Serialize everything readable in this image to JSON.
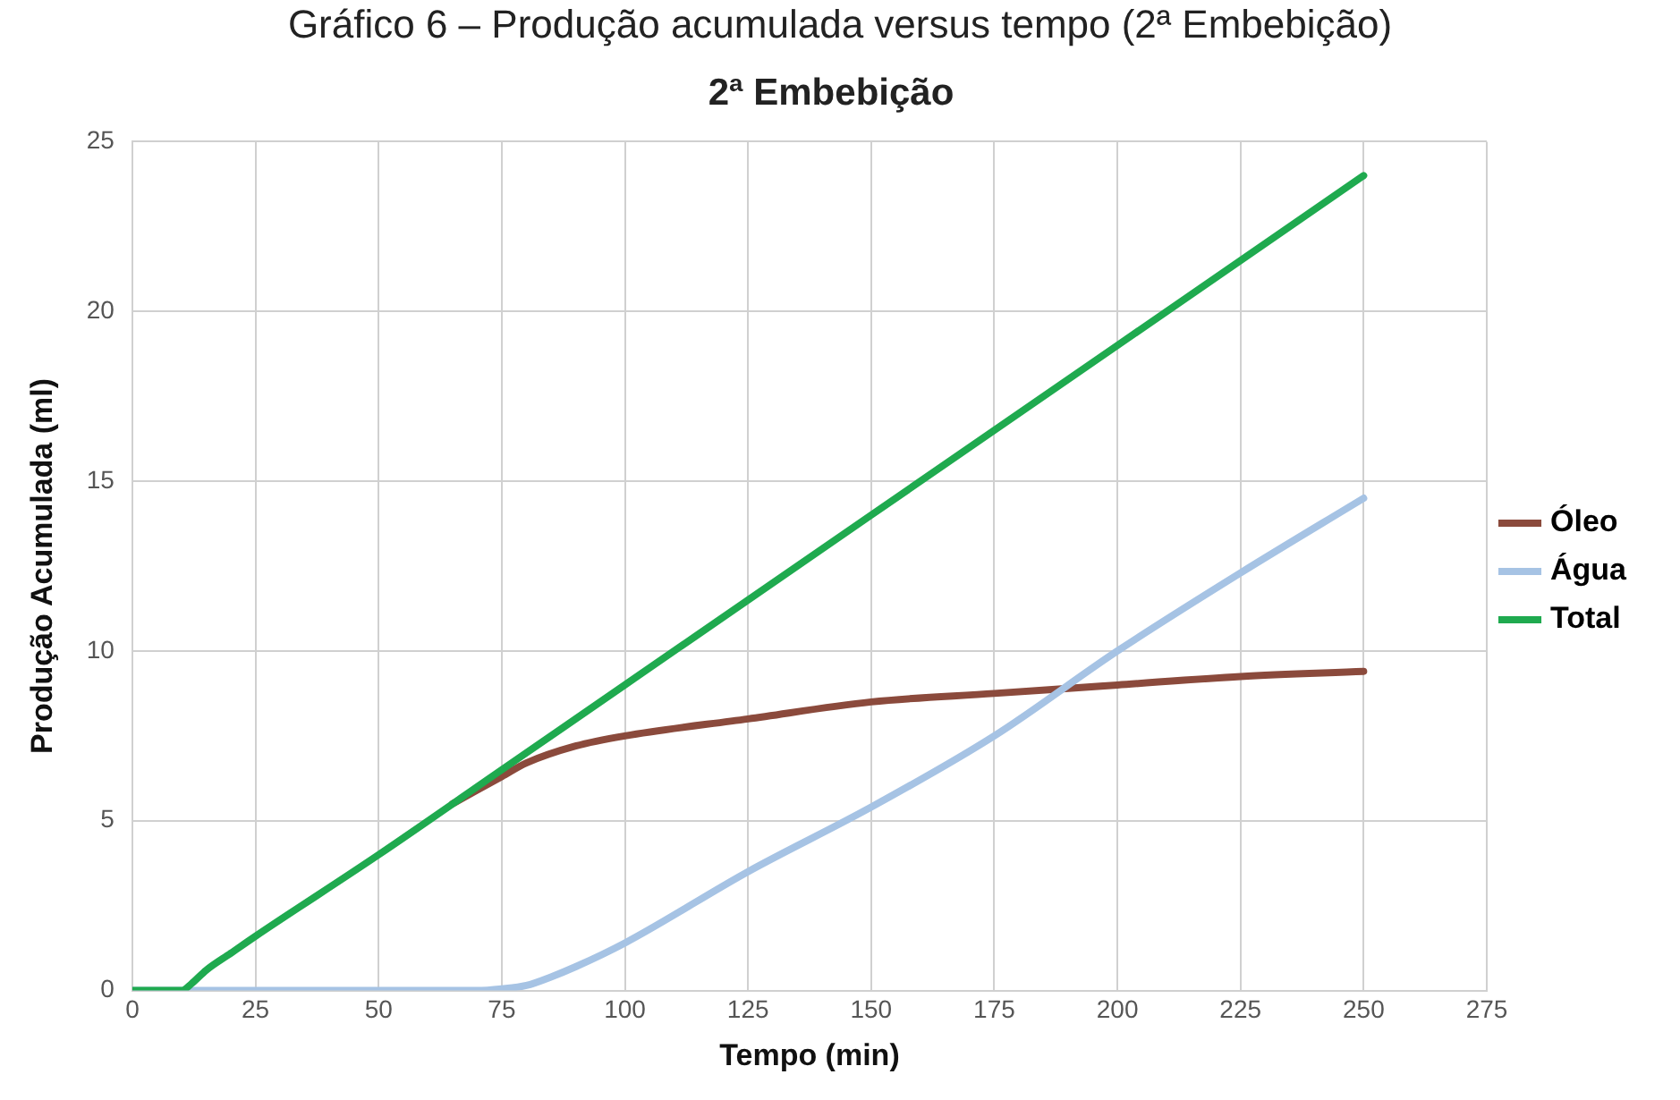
{
  "chart_data": {
    "type": "line",
    "title": "2ª Embebição",
    "xlabel": "Tempo (min)",
    "ylabel": "Produção Acumulada (ml)",
    "annotations": [
      "Gráfico 6 – Produção acumulada versus tempo (2ª Embebição)"
    ],
    "xlim": [
      0,
      275
    ],
    "xticks": [
      0,
      25,
      50,
      75,
      100,
      125,
      150,
      175,
      200,
      225,
      250,
      275
    ],
    "ylim": [
      0,
      25
    ],
    "yticks": [
      0,
      5,
      10,
      15,
      20,
      25
    ],
    "grid": true,
    "legend": "right",
    "marker": "none",
    "line_style": "solid",
    "series": [
      {
        "name": "Óleo",
        "color": "#8b4a3c",
        "x": [
          65,
          70,
          75,
          80,
          90,
          100,
          125,
          150,
          175,
          200,
          225,
          250
        ],
        "values": [
          5.5,
          5.9,
          6.3,
          6.7,
          7.2,
          7.5,
          8.0,
          8.5,
          8.75,
          9.0,
          9.25,
          9.4
        ]
      },
      {
        "name": "Água",
        "color": "#a6c3e4",
        "x": [
          0,
          70,
          75,
          80,
          85,
          90,
          100,
          125,
          150,
          175,
          200,
          225,
          250
        ],
        "values": [
          0,
          0,
          0.05,
          0.15,
          0.4,
          0.7,
          1.4,
          3.5,
          5.4,
          7.5,
          10.0,
          12.3,
          14.5
        ]
      },
      {
        "name": "Total",
        "color": "#1faa4f",
        "x": [
          0,
          10,
          12,
          15,
          20,
          25,
          50,
          75,
          100,
          150,
          200,
          250
        ],
        "values": [
          0,
          0,
          0.2,
          0.6,
          1.1,
          1.6,
          4.0,
          6.5,
          9.0,
          14.0,
          19.0,
          24.0
        ]
      }
    ]
  }
}
